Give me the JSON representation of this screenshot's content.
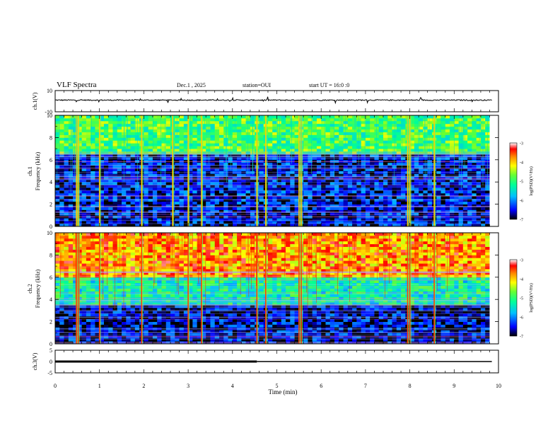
{
  "header": {
    "title": "VLF Spectra",
    "date": "Dec.1 , 2025",
    "station": "station=OUI",
    "start": "start UT = 16:0 :0"
  },
  "colorbar": {
    "ticks": [
      "-3",
      "-4",
      "-5",
      "-6",
      "-7"
    ],
    "label": "log(PSD)(V²/Hz)",
    "colors": [
      "#000080",
      "#0000ff",
      "#00bfff",
      "#00ffaa",
      "#66ff33",
      "#ffff00",
      "#ff8800",
      "#ff0000",
      "#ffffff"
    ]
  },
  "chart_data": [
    {
      "type": "line",
      "name": "ch1-waveform",
      "ylabel": "ch.1(V)",
      "ylim": [
        -10,
        10
      ],
      "ytick_labels": [
        "10",
        "-10"
      ],
      "xlim": [
        0,
        10
      ],
      "baseline": 1,
      "description_values": {
        "typical_amplitude": 0.5
      }
    },
    {
      "type": "heatmap",
      "name": "ch1-spectrogram",
      "ylabel": "ch.1\nFrequency (kHz)",
      "ylim": [
        0,
        10
      ],
      "ytick_labels": [
        "0",
        "2",
        "4",
        "6",
        "8",
        "10"
      ],
      "xlim": [
        0,
        9.8
      ],
      "color_scale": [
        -7,
        -3
      ],
      "bands": [
        {
          "fmin": 0,
          "fmax": 6.5,
          "level": -6.5
        },
        {
          "fmin": 6.5,
          "fmax": 10,
          "level": -4.9
        }
      ],
      "spikes_min": [
        0.48,
        0.52,
        1.0,
        1.95,
        2.65,
        3.0,
        3.3,
        4.55,
        4.75,
        5.5,
        5.55,
        7.95,
        8.0,
        8.55
      ]
    },
    {
      "type": "heatmap",
      "name": "ch2-spectrogram",
      "ylabel": "ch.2\nFrequency (kHz)",
      "ylim": [
        0,
        10
      ],
      "ytick_labels": [
        "0",
        "2",
        "4",
        "6",
        "8",
        "10"
      ],
      "xlim": [
        0,
        9.8
      ],
      "color_scale": [
        -7,
        -3
      ],
      "bands": [
        {
          "fmin": 0,
          "fmax": 3.5,
          "level": -6.6
        },
        {
          "fmin": 3.5,
          "fmax": 6.0,
          "level": -5.3
        },
        {
          "fmin": 6.0,
          "fmax": 10,
          "level": -3.8
        }
      ],
      "spikes_min": [
        0.48,
        0.52,
        1.0,
        1.95,
        3.0,
        3.3,
        4.55,
        4.75,
        5.5,
        5.55,
        7.95,
        8.0,
        8.55
      ]
    },
    {
      "type": "line",
      "name": "ch3-signal",
      "ylabel": "ch.3(V)",
      "ylim": [
        -5,
        5
      ],
      "ytick_labels": [
        "5",
        "0",
        "-5"
      ],
      "xlim": [
        0,
        10
      ],
      "segments": [
        {
          "x0": 0,
          "x1": 4.55,
          "y": 0,
          "weight": "thick"
        },
        {
          "x0": 4.55,
          "x1": 9.85,
          "y": 0,
          "weight": "thin"
        }
      ],
      "xlabel": "Time (min)",
      "xtick_labels": [
        "0",
        "1",
        "2",
        "3",
        "4",
        "5",
        "6",
        "7",
        "8",
        "9",
        "10"
      ]
    }
  ]
}
